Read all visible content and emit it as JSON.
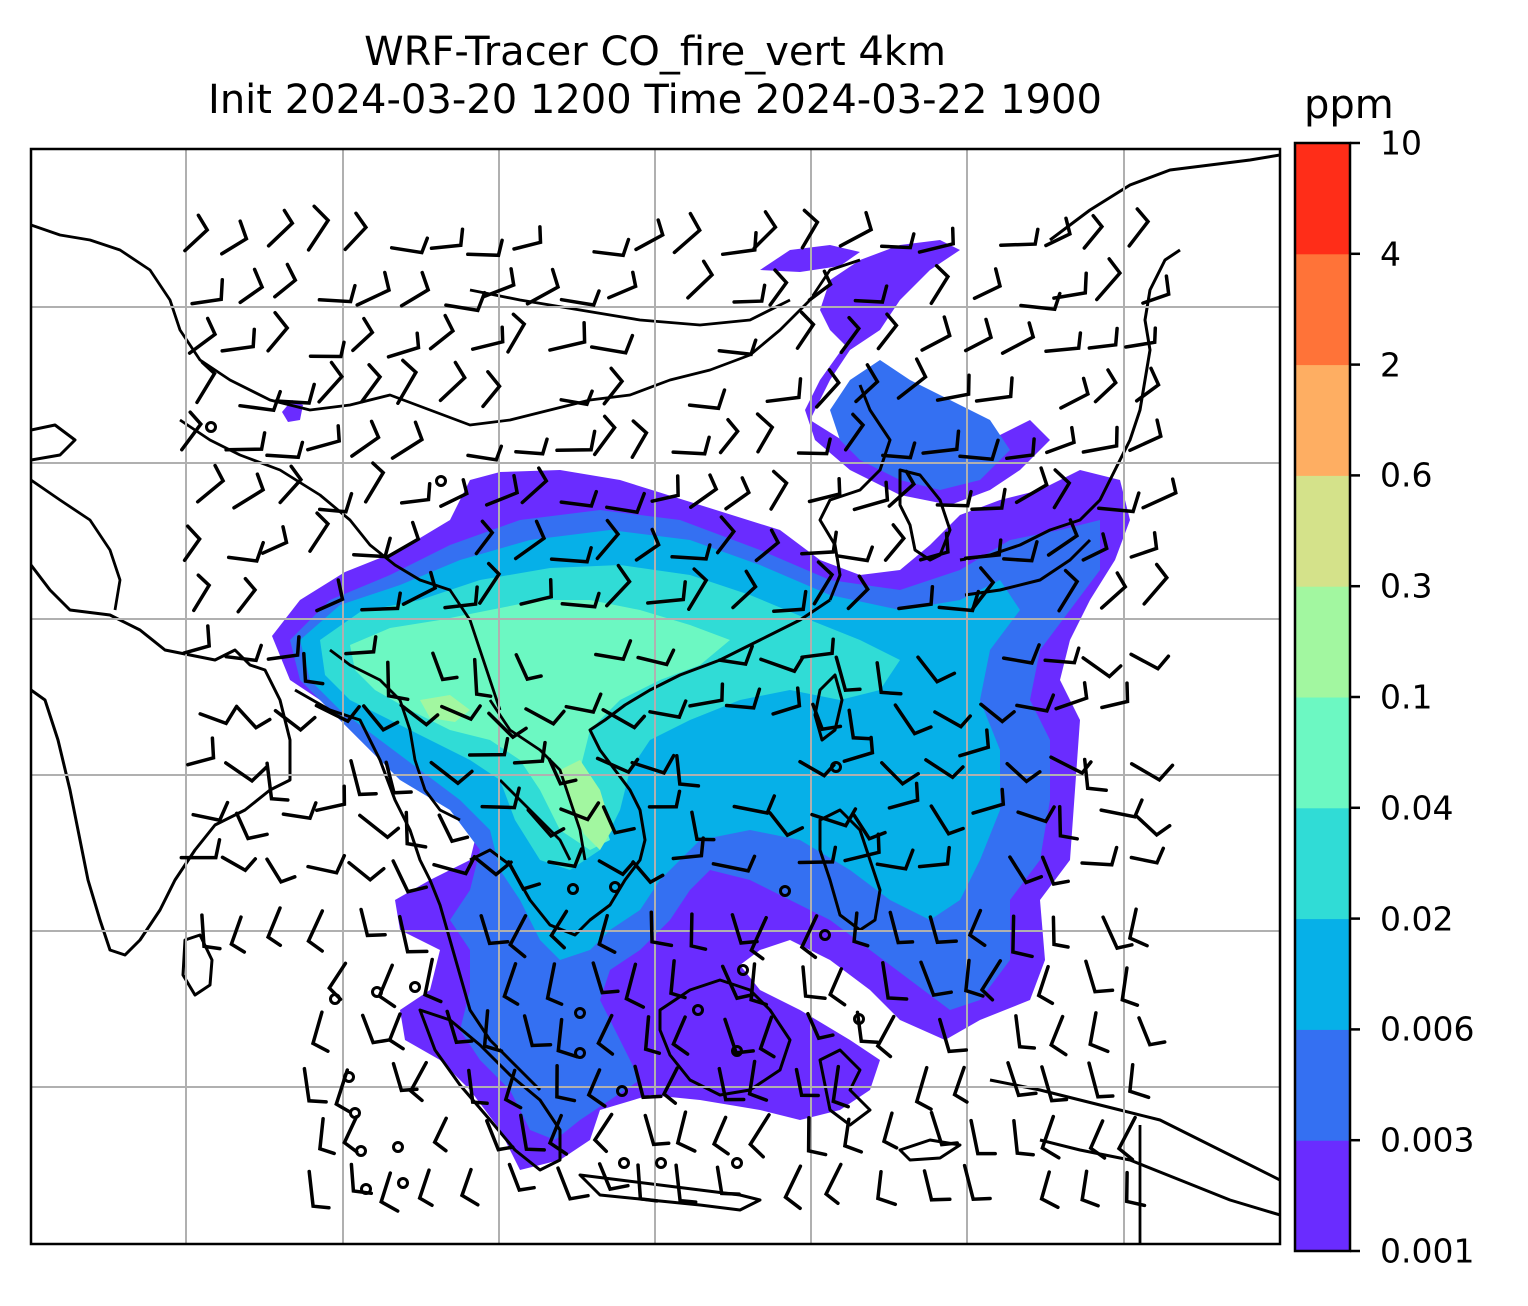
{
  "title": {
    "line1": "WRF-Tracer CO_fire_vert 4km",
    "line2": "Init 2024-03-20 1200 Time 2024-03-22 1900"
  },
  "colorbar": {
    "unit": "ppm",
    "levels": [
      "0.001",
      "0.003",
      "0.006",
      "0.02",
      "0.04",
      "0.1",
      "0.3",
      "0.6",
      "2",
      "4",
      "10"
    ],
    "colors": [
      "#6a2cff",
      "#3470f2",
      "#06b0e8",
      "#30dcd6",
      "#6cf8c2",
      "#a2f7a0",
      "#d4e28a",
      "#feae62",
      "#ff7338",
      "#ff2d18"
    ]
  },
  "map": {
    "gridlines": true,
    "overlays": [
      "coastlines",
      "country-borders",
      "wind-barbs",
      "calm-wind-circles"
    ],
    "region": "South / Southeast / East Asia"
  }
}
